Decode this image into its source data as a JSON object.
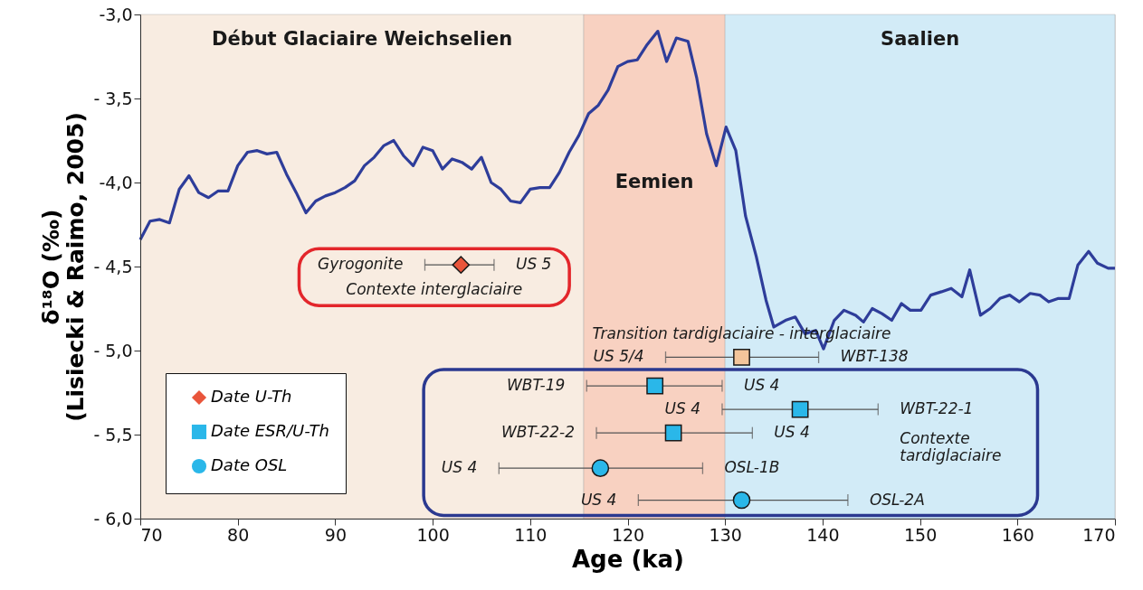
{
  "chart_data": {
    "type": "line",
    "xlabel": "Age (ka)",
    "ylabel": "δ¹⁸O (‰)\n(Lisiecki & Raimo, 2005)",
    "xlim": [
      70,
      170
    ],
    "xticks": [
      70,
      80,
      90,
      100,
      110,
      120,
      130,
      140,
      150,
      160,
      170
    ],
    "ylim": [
      -6.0,
      -3.0
    ],
    "yticks": [
      {
        "value": -3.0,
        "label": "-3,0"
      },
      {
        "value": -3.5,
        "label": "- 3,5"
      },
      {
        "value": -4.0,
        "label": "-4,0"
      },
      {
        "value": -4.5,
        "label": "- 4,5"
      },
      {
        "value": -5.0,
        "label": "- 5,0"
      },
      {
        "value": -5.5,
        "label": "- 5,5"
      },
      {
        "value": -6.0,
        "label": "- 6,0"
      }
    ],
    "grid": false,
    "legend": "bottom left",
    "bands": [
      {
        "axis": "x",
        "from": 70,
        "to": 115.5,
        "label": "Début Glaciaire Weichselien",
        "color": "#f8ece1"
      },
      {
        "axis": "x",
        "from": 115.5,
        "to": 130,
        "label": "Eemien",
        "color": "#f8d1c1"
      },
      {
        "axis": "x",
        "from": 130,
        "to": 170,
        "label": "Saalien",
        "color": "#d2ebf7"
      }
    ],
    "series": [
      {
        "color": "#2e3d9a",
        "line_style": "solid",
        "x": [
          70,
          71,
          72,
          73,
          74,
          75,
          76,
          77,
          78,
          79,
          80,
          81,
          82,
          83,
          84,
          85,
          86,
          87,
          88,
          89,
          90,
          91,
          92,
          93,
          94,
          95,
          96,
          97,
          98,
          99,
          100,
          101,
          102,
          103,
          104,
          105,
          106,
          107,
          108,
          109,
          110,
          111,
          112,
          113,
          114,
          115,
          116,
          117,
          118,
          119,
          120,
          121,
          122,
          123.1,
          124,
          125,
          126.2,
          127.1,
          128.1,
          129.1,
          130.1,
          131.1,
          132.1,
          133.2,
          134.2,
          135,
          136.2,
          137.2,
          138.2,
          139.3,
          140.1,
          141.2,
          142.2,
          143.4,
          144.2,
          145.1,
          146.1,
          147.1,
          148.1,
          149,
          150.1,
          151.1,
          152.2,
          153.2,
          154.3,
          155.1,
          156.2,
          157.2,
          158.2,
          159.2,
          160.2,
          161.3,
          162.3,
          163.2,
          164.2,
          165.3,
          166.2,
          167.3,
          168.2,
          169.3,
          170
        ],
        "values": [
          -4.34,
          -4.23,
          -4.22,
          -4.24,
          -4.04,
          -3.96,
          -4.06,
          -4.09,
          -4.05,
          -4.05,
          -3.9,
          -3.82,
          -3.81,
          -3.83,
          -3.82,
          -3.95,
          -4.06,
          -4.18,
          -4.11,
          -4.08,
          -4.06,
          -4.03,
          -3.99,
          -3.9,
          -3.85,
          -3.78,
          -3.75,
          -3.84,
          -3.9,
          -3.79,
          -3.81,
          -3.92,
          -3.86,
          -3.88,
          -3.92,
          -3.85,
          -4.0,
          -4.04,
          -4.11,
          -4.12,
          -4.04,
          -4.03,
          -4.03,
          -3.94,
          -3.82,
          -3.72,
          -3.59,
          -3.54,
          -3.45,
          -3.31,
          -3.28,
          -3.27,
          -3.18,
          -3.1,
          -3.28,
          -3.14,
          -3.16,
          -3.38,
          -3.71,
          -3.9,
          -3.67,
          -3.81,
          -4.2,
          -4.44,
          -4.7,
          -4.86,
          -4.82,
          -4.8,
          -4.9,
          -4.88,
          -4.99,
          -4.82,
          -4.76,
          -4.79,
          -4.83,
          -4.75,
          -4.78,
          -4.82,
          -4.72,
          -4.76,
          -4.76,
          -4.67,
          -4.65,
          -4.63,
          -4.68,
          -4.52,
          -4.79,
          -4.75,
          -4.69,
          -4.67,
          -4.71,
          -4.66,
          -4.67,
          -4.71,
          -4.69,
          -4.69,
          -4.49,
          -4.41,
          -4.48,
          -4.51,
          -4.51
        ]
      },
      {
        "type": "scatter",
        "name": "Date U-Th",
        "marker": "diamond",
        "x": [
          102.9
        ],
        "values": [
          -4.49
        ],
        "colors": [
          "#e9553b"
        ],
        "xerrors": [
          [
            99.2,
            106.3
          ]
        ]
      },
      {
        "type": "scatter",
        "name": "Date ESR/U-Th",
        "marker": "square",
        "x": [
          122.8,
          137.7,
          124.7,
          131.7
        ],
        "values": [
          -5.21,
          -5.35,
          -5.49,
          -5.04
        ],
        "colors": [
          "#2ab7e9",
          "#2ab7e9",
          "#2ab7e9",
          "#f3c59b"
        ],
        "xerrors": [
          [
            115.8,
            129.7
          ],
          [
            129.7,
            145.7
          ],
          [
            116.8,
            132.8
          ],
          [
            123.9,
            139.6
          ]
        ]
      },
      {
        "type": "scatter",
        "name": "Date OSL",
        "marker": "circle",
        "x": [
          117.2,
          131.7
        ],
        "values": [
          -5.7,
          -5.89
        ],
        "colors": [
          "#2ab7e9",
          "#2ab7e9"
        ],
        "xerrors": [
          [
            106.8,
            127.7
          ],
          [
            121.1,
            142.6
          ]
        ]
      }
    ],
    "annotations": [
      {
        "text": "Gyrogonite",
        "x": 99.2,
        "y": -4.49
      },
      {
        "text": "US 5",
        "x": 106.3,
        "y": -4.49
      },
      "Contexte interglaciaire",
      "Contexte\ntardiglaciaire",
      "Transition tardiglaciaire - interglaciaire",
      {
        "text": "US 5/4",
        "x": 123.9,
        "y": -5.04
      },
      {
        "text": "WBT-138",
        "x": 139.6,
        "y": -5.04
      },
      {
        "text": "WBT-19",
        "x": 115.8,
        "y": -5.21
      },
      {
        "text": "US 4",
        "x": 129.7,
        "y": -5.21
      },
      {
        "text": "US 4",
        "x": 129.7,
        "y": -5.35
      },
      {
        "text": "WBT-22-1",
        "x": 145.7,
        "y": -5.35
      },
      {
        "text": "WBT-22-2",
        "x": 116.8,
        "y": -5.49
      },
      {
        "text": "US 4",
        "x": 132.8,
        "y": -5.49
      },
      {
        "text": "US 4",
        "x": 106.8,
        "y": -5.7
      },
      {
        "text": "OSL-1B",
        "x": 127.7,
        "y": -5.7
      },
      {
        "text": "US 4",
        "x": 121.1,
        "y": -5.89
      },
      {
        "text": "OSL-2A",
        "x": 142.6,
        "y": -5.89
      }
    ]
  }
}
